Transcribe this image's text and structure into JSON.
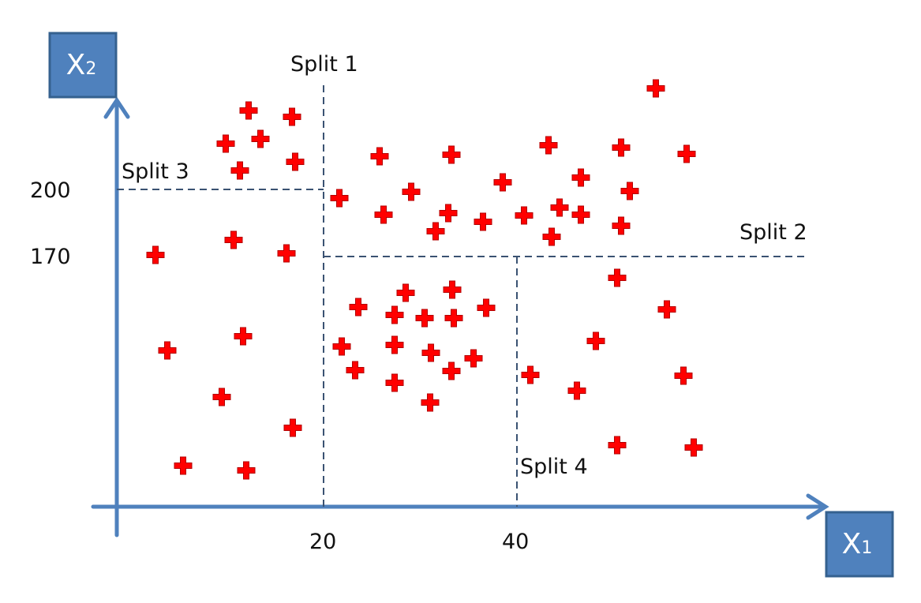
{
  "axes": {
    "x_label": "X",
    "x_subscript": "1",
    "y_label": "X",
    "y_subscript": "2",
    "axis_color": "#4f81bd",
    "box_color": "#4f81bd",
    "box_border": "#35618f"
  },
  "ticks": {
    "x": [
      "20",
      "40"
    ],
    "y": [
      "200",
      "170"
    ]
  },
  "splits": [
    {
      "label": "Split 1",
      "orientation": "vertical",
      "at": "20"
    },
    {
      "label": "Split 2",
      "orientation": "horizontal",
      "at": "170"
    },
    {
      "label": "Split 3",
      "orientation": "horizontal",
      "at": "200"
    },
    {
      "label": "Split 4",
      "orientation": "vertical",
      "at": "40"
    }
  ],
  "marker": {
    "shape": "plus",
    "color": "#ff0000"
  },
  "split_line_color": "#3a5272"
}
